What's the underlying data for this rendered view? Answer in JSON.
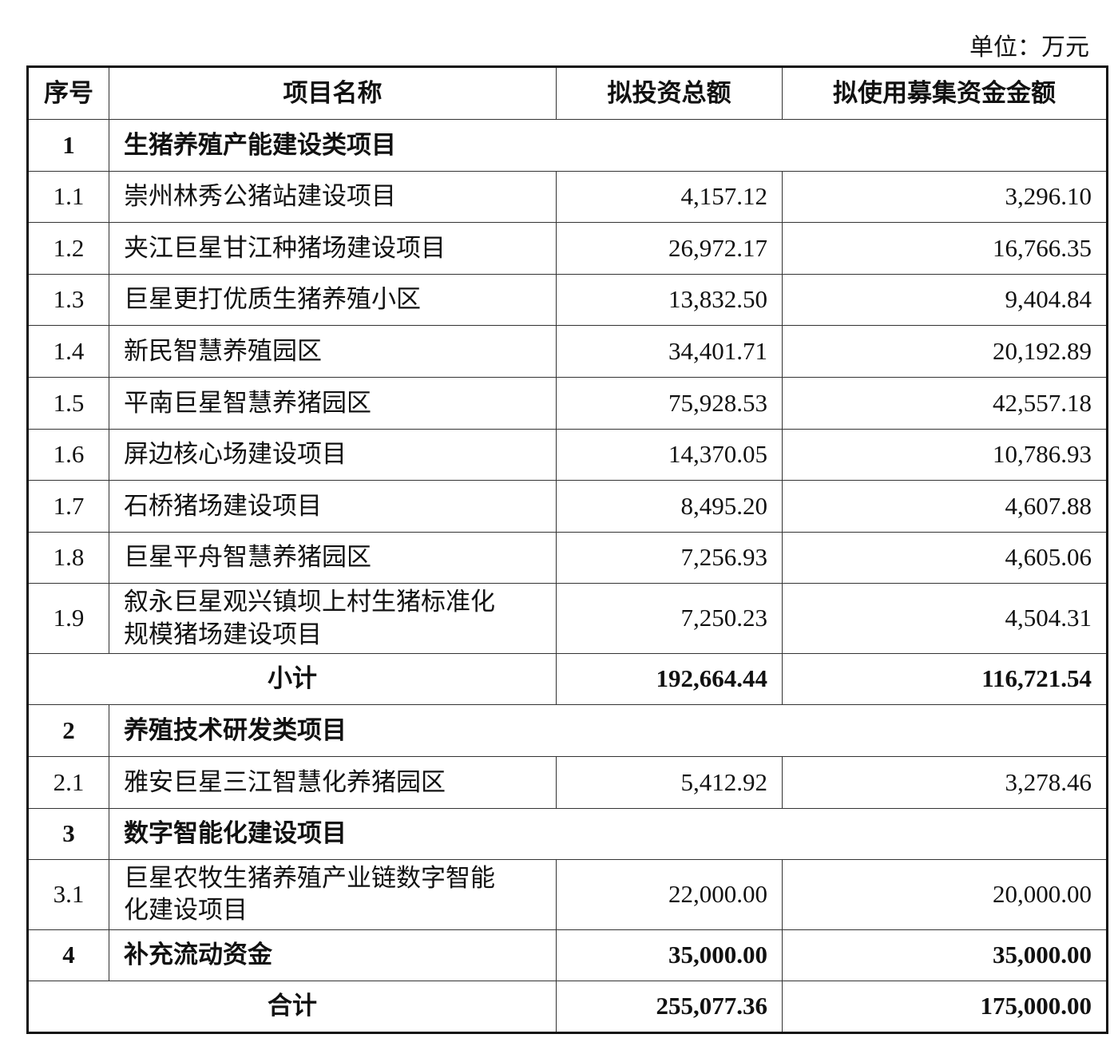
{
  "unit": "单位：万元",
  "table": {
    "header": [
      "序号",
      "项目名称",
      "拟投资总额",
      "拟使用募集资金金额"
    ],
    "rows": [
      [
        "1",
        "生猪养殖产能建设类项目"
      ],
      [
        "1.1",
        "崇州林秀公猪站建设项目",
        "4,157.12",
        "3,296.10"
      ],
      [
        "1.2",
        "夹江巨星甘江种猪场建设项目",
        "26,972.17",
        "16,766.35"
      ],
      [
        "1.3",
        "巨星更打优质生猪养殖小区",
        "13,832.50",
        "9,404.84"
      ],
      [
        "1.4",
        "新民智慧养殖园区",
        "34,401.71",
        "20,192.89"
      ],
      [
        "1.5",
        "平南巨星智慧养猪园区",
        "75,928.53",
        "42,557.18"
      ],
      [
        "1.6",
        "屏边核心场建设项目",
        "14,370.05",
        "10,786.93"
      ],
      [
        "1.7",
        "石桥猪场建设项目",
        "8,495.20",
        "4,607.88"
      ],
      [
        "1.8",
        "巨星平舟智慧养猪园区",
        "7,256.93",
        "4,605.06"
      ],
      [
        "1.9",
        "叙永巨星观兴镇坝上村生猪标准化规模猪场建设项目",
        "7,250.23",
        "4,504.31"
      ],
      [
        "小计",
        "192,664.44",
        "116,721.54"
      ],
      [
        "2",
        "养殖技术研发类项目"
      ],
      [
        "2.1",
        "雅安巨星三江智慧化养猪园区",
        "5,412.92",
        "3,278.46"
      ],
      [
        "3",
        "数字智能化建设项目"
      ],
      [
        "3.1",
        "巨星农牧生猪养殖产业链数字智能化建设项目",
        "22,000.00",
        "20,000.00"
      ],
      [
        "4",
        "补充流动资金",
        "35,000.00",
        "35,000.00"
      ],
      [
        "合计",
        "255,077.36",
        "175,000.00"
      ]
    ]
  }
}
